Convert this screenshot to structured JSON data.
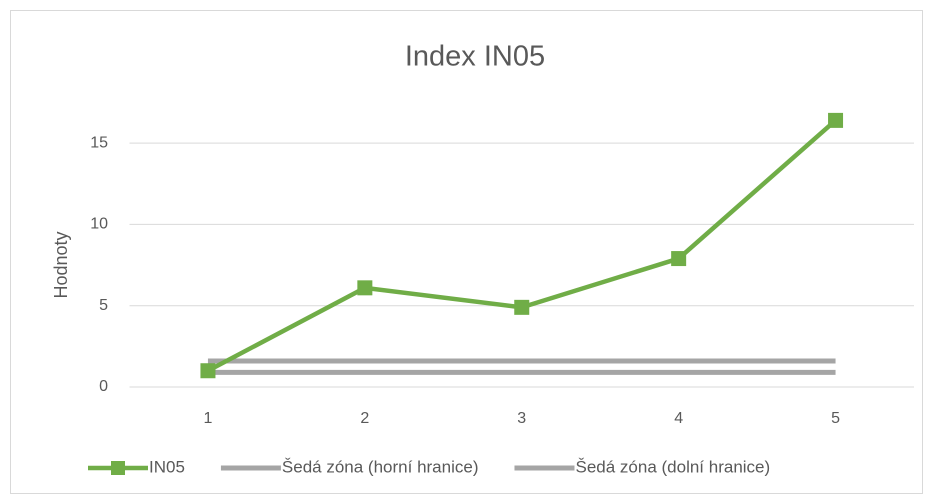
{
  "chart_data": {
    "type": "line",
    "title": "Index IN05",
    "y_label": "Hodnoty",
    "categories": [
      "1",
      "2",
      "3",
      "4",
      "5"
    ],
    "series": [
      {
        "name": "IN05",
        "color": "#70ad47",
        "values": [
          1.0,
          6.1,
          4.9,
          7.9,
          16.4
        ],
        "marker": "square"
      },
      {
        "name": "Šedá zóna (horní hranice)",
        "color": "#a5a5a5",
        "values": [
          1.6,
          1.6,
          1.6,
          1.6,
          1.6
        ]
      },
      {
        "name": "Šedá zóna (dolní hranice)",
        "color": "#a5a5a5",
        "values": [
          0.9,
          0.9,
          0.9,
          0.9,
          0.9
        ]
      }
    ],
    "ylim": [
      0,
      17.5
    ],
    "yticks": [
      0,
      5,
      10,
      15
    ],
    "grid": true,
    "legend": "bottom"
  }
}
